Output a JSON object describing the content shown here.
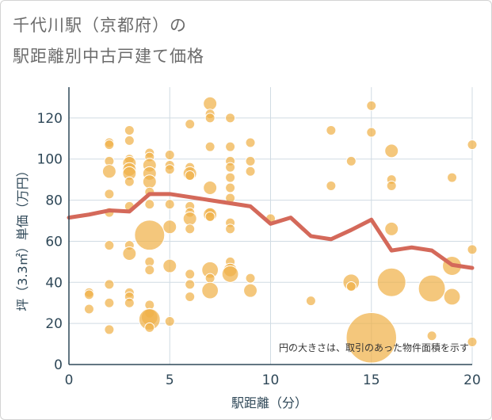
{
  "title_line1": "千代川駅（京都府）の",
  "title_line2": "駅距離別中古戸建て価格",
  "chart_data": {
    "type": "scatter",
    "title": "千代川駅（京都府）の駅距離別中古戸建て価格",
    "xlabel": "駅距離（分）",
    "ylabel": "坪（3.3㎡）単価（万円）",
    "xlim": [
      0,
      20
    ],
    "ylim": [
      0,
      135
    ],
    "x_ticks": [
      0,
      5,
      10,
      15,
      20
    ],
    "y_ticks": [
      0,
      20,
      40,
      60,
      80,
      100,
      120
    ],
    "grid": true,
    "annotation": "円の大きさは、取引のあった物件面積を示す",
    "colors": {
      "bubble": "#f0b14a",
      "line": "#d4695a",
      "grid": "#d0dbe3",
      "axis": "#2f4858"
    },
    "bubble_legend": "size = transaction floor area",
    "points": [
      {
        "x": 1,
        "y": 35,
        "size": 1
      },
      {
        "x": 1,
        "y": 34,
        "size": 1
      },
      {
        "x": 1,
        "y": 27,
        "size": 1
      },
      {
        "x": 2,
        "y": 108,
        "size": 1
      },
      {
        "x": 2,
        "y": 107,
        "size": 1
      },
      {
        "x": 2,
        "y": 99,
        "size": 1
      },
      {
        "x": 2,
        "y": 94,
        "size": 2
      },
      {
        "x": 2,
        "y": 83,
        "size": 1
      },
      {
        "x": 2,
        "y": 74,
        "size": 1
      },
      {
        "x": 2,
        "y": 58,
        "size": 1
      },
      {
        "x": 2,
        "y": 39,
        "size": 1
      },
      {
        "x": 2,
        "y": 30,
        "size": 1
      },
      {
        "x": 2,
        "y": 17,
        "size": 1
      },
      {
        "x": 3,
        "y": 114,
        "size": 1
      },
      {
        "x": 3,
        "y": 109,
        "size": 1
      },
      {
        "x": 3,
        "y": 100,
        "size": 1
      },
      {
        "x": 3,
        "y": 98,
        "size": 2
      },
      {
        "x": 3,
        "y": 95,
        "size": 2
      },
      {
        "x": 3,
        "y": 93,
        "size": 2
      },
      {
        "x": 3,
        "y": 89,
        "size": 1
      },
      {
        "x": 3,
        "y": 77,
        "size": 1
      },
      {
        "x": 3,
        "y": 58,
        "size": 1
      },
      {
        "x": 3,
        "y": 54,
        "size": 2
      },
      {
        "x": 3,
        "y": 35,
        "size": 1
      },
      {
        "x": 3,
        "y": 33,
        "size": 1
      },
      {
        "x": 3,
        "y": 30,
        "size": 1
      },
      {
        "x": 4,
        "y": 103,
        "size": 1
      },
      {
        "x": 4,
        "y": 101,
        "size": 1
      },
      {
        "x": 4,
        "y": 97,
        "size": 2
      },
      {
        "x": 4,
        "y": 93,
        "size": 2
      },
      {
        "x": 4,
        "y": 89,
        "size": 2
      },
      {
        "x": 4,
        "y": 84,
        "size": 1
      },
      {
        "x": 4,
        "y": 78,
        "size": 1
      },
      {
        "x": 4,
        "y": 63,
        "size": 10
      },
      {
        "x": 4,
        "y": 50,
        "size": 1
      },
      {
        "x": 4,
        "y": 46,
        "size": 1
      },
      {
        "x": 4,
        "y": 29,
        "size": 1
      },
      {
        "x": 4,
        "y": 25,
        "size": 1
      },
      {
        "x": 4,
        "y": 23,
        "size": 3
      },
      {
        "x": 4,
        "y": 22,
        "size": 5
      },
      {
        "x": 4,
        "y": 18,
        "size": 1
      },
      {
        "x": 5,
        "y": 102,
        "size": 1
      },
      {
        "x": 5,
        "y": 97,
        "size": 1
      },
      {
        "x": 5,
        "y": 95,
        "size": 1
      },
      {
        "x": 5,
        "y": 78,
        "size": 1
      },
      {
        "x": 5,
        "y": 67,
        "size": 2
      },
      {
        "x": 5,
        "y": 48,
        "size": 2
      },
      {
        "x": 5,
        "y": 21,
        "size": 1
      },
      {
        "x": 6,
        "y": 117,
        "size": 1
      },
      {
        "x": 6,
        "y": 96,
        "size": 1
      },
      {
        "x": 6,
        "y": 93,
        "size": 2
      },
      {
        "x": 6,
        "y": 92,
        "size": 1
      },
      {
        "x": 6,
        "y": 77,
        "size": 1
      },
      {
        "x": 6,
        "y": 74,
        "size": 1
      },
      {
        "x": 6,
        "y": 71,
        "size": 2
      },
      {
        "x": 6,
        "y": 66,
        "size": 1
      },
      {
        "x": 6,
        "y": 44,
        "size": 1
      },
      {
        "x": 6,
        "y": 39,
        "size": 1
      },
      {
        "x": 6,
        "y": 33,
        "size": 1
      },
      {
        "x": 7,
        "y": 127,
        "size": 2
      },
      {
        "x": 7,
        "y": 122,
        "size": 1
      },
      {
        "x": 7,
        "y": 120,
        "size": 1
      },
      {
        "x": 7,
        "y": 106,
        "size": 1
      },
      {
        "x": 7,
        "y": 86,
        "size": 2
      },
      {
        "x": 7,
        "y": 74,
        "size": 1
      },
      {
        "x": 7,
        "y": 73,
        "size": 2
      },
      {
        "x": 7,
        "y": 72,
        "size": 1
      },
      {
        "x": 7,
        "y": 46,
        "size": 3
      },
      {
        "x": 7,
        "y": 42,
        "size": 1
      },
      {
        "x": 7,
        "y": 36,
        "size": 3
      },
      {
        "x": 8,
        "y": 120,
        "size": 1
      },
      {
        "x": 8,
        "y": 106,
        "size": 1
      },
      {
        "x": 8,
        "y": 99,
        "size": 1
      },
      {
        "x": 8,
        "y": 96,
        "size": 1
      },
      {
        "x": 8,
        "y": 91,
        "size": 1
      },
      {
        "x": 8,
        "y": 86,
        "size": 1
      },
      {
        "x": 8,
        "y": 81,
        "size": 1
      },
      {
        "x": 8,
        "y": 69,
        "size": 1
      },
      {
        "x": 8,
        "y": 66,
        "size": 1
      },
      {
        "x": 8,
        "y": 50,
        "size": 1
      },
      {
        "x": 8,
        "y": 46,
        "size": 2
      },
      {
        "x": 8,
        "y": 44,
        "size": 3
      },
      {
        "x": 9,
        "y": 108,
        "size": 1
      },
      {
        "x": 9,
        "y": 99,
        "size": 1
      },
      {
        "x": 9,
        "y": 94,
        "size": 1
      },
      {
        "x": 9,
        "y": 42,
        "size": 1
      },
      {
        "x": 9,
        "y": 36,
        "size": 2
      },
      {
        "x": 10,
        "y": 71,
        "size": 1
      },
      {
        "x": 12,
        "y": 31,
        "size": 1
      },
      {
        "x": 13,
        "y": 114,
        "size": 1
      },
      {
        "x": 13,
        "y": 87,
        "size": 1
      },
      {
        "x": 14,
        "y": 99,
        "size": 1
      },
      {
        "x": 14,
        "y": 40,
        "size": 3
      },
      {
        "x": 14,
        "y": 38,
        "size": 1
      },
      {
        "x": 15,
        "y": 126,
        "size": 1
      },
      {
        "x": 15,
        "y": 113,
        "size": 1
      },
      {
        "x": 15,
        "y": 13,
        "size": 28
      },
      {
        "x": 16,
        "y": 104,
        "size": 2
      },
      {
        "x": 16,
        "y": 90,
        "size": 1
      },
      {
        "x": 16,
        "y": 87,
        "size": 1
      },
      {
        "x": 16,
        "y": 66,
        "size": 2
      },
      {
        "x": 16,
        "y": 40,
        "size": 9
      },
      {
        "x": 18,
        "y": 37,
        "size": 8
      },
      {
        "x": 18,
        "y": 14,
        "size": 1
      },
      {
        "x": 19,
        "y": 91,
        "size": 1
      },
      {
        "x": 19,
        "y": 48,
        "size": 4
      },
      {
        "x": 19,
        "y": 33,
        "size": 3
      },
      {
        "x": 20,
        "y": 107,
        "size": 1
      },
      {
        "x": 20,
        "y": 56,
        "size": 1
      },
      {
        "x": 20,
        "y": 11,
        "size": 1
      }
    ],
    "series": [
      {
        "x": [
          0,
          1,
          2,
          3,
          4,
          5,
          6,
          7,
          8,
          9,
          10,
          11,
          12,
          13,
          14,
          15,
          16,
          17,
          18,
          19,
          20
        ],
        "values": [
          71.5,
          73,
          75,
          74.5,
          83,
          83,
          81.5,
          80,
          78.5,
          77,
          68.5,
          71.5,
          62.5,
          61,
          65.5,
          70.5,
          55.5,
          57,
          55.5,
          48.5,
          47
        ]
      }
    ]
  }
}
